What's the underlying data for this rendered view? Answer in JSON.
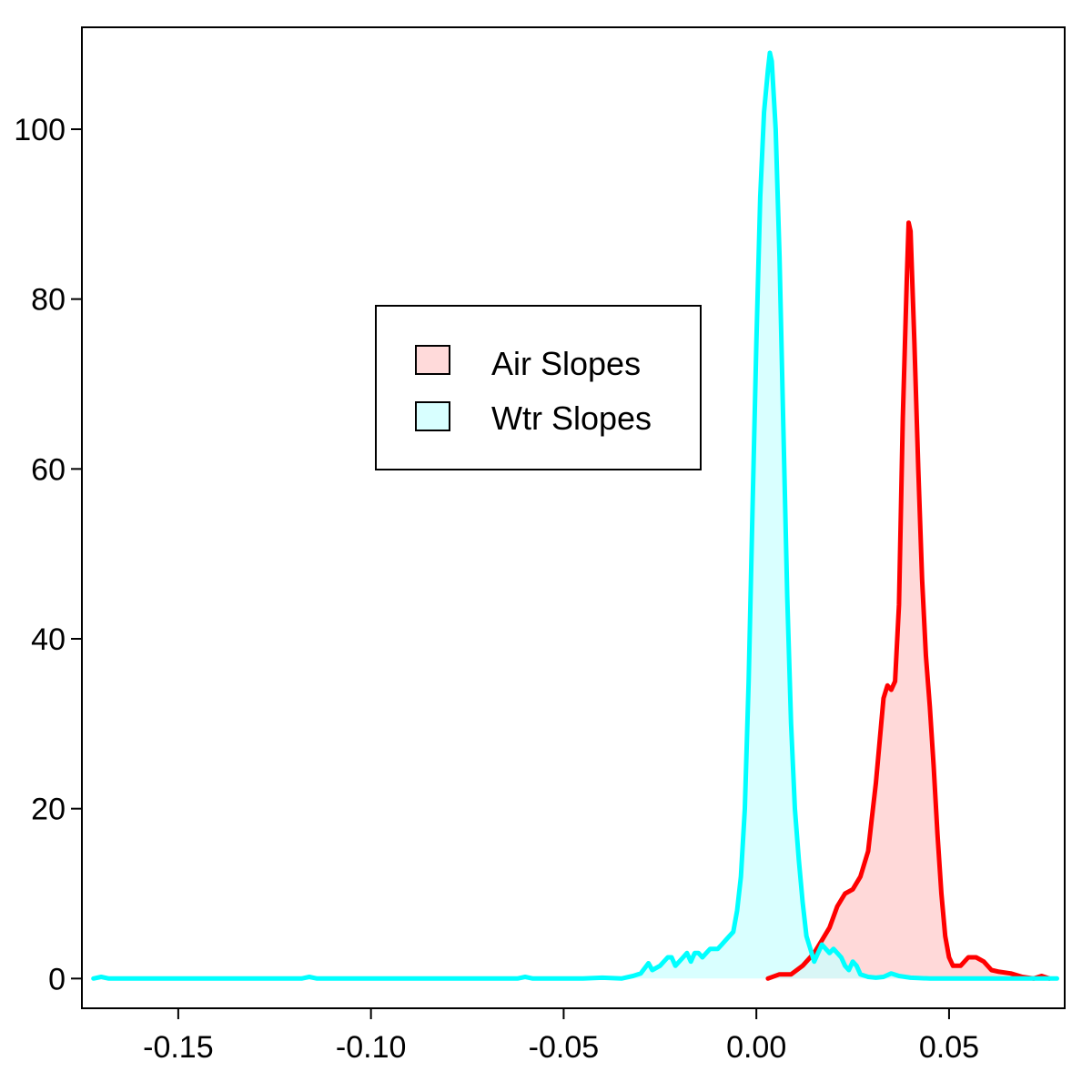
{
  "chart_data": {
    "type": "area",
    "title": "",
    "xlabel": "",
    "ylabel": "",
    "xlim": [
      -0.175,
      0.08
    ],
    "ylim": [
      -3.5,
      112
    ],
    "x_ticks": [
      -0.15,
      -0.1,
      -0.05,
      0.0,
      0.05
    ],
    "x_tick_labels": [
      "-0.15",
      "-0.10",
      "-0.05",
      "0.00",
      "0.05"
    ],
    "y_ticks": [
      0,
      20,
      40,
      60,
      80,
      100
    ],
    "y_tick_labels": [
      "0",
      "20",
      "40",
      "60",
      "80",
      "100"
    ],
    "grid": false,
    "legend": {
      "position": "center",
      "entries": [
        {
          "label": "Air Slopes",
          "fill": "#ffdada",
          "line": "#ff0000"
        },
        {
          "label": "Wtr Slopes",
          "fill": "#d8ffff",
          "line": "#00ffff"
        }
      ]
    },
    "series": [
      {
        "name": "Air Slopes",
        "line_color": "#ff0000",
        "fill_color": "#ffcccc",
        "points": [
          [
            0.003,
            0
          ],
          [
            0.006,
            0.5
          ],
          [
            0.009,
            0.5
          ],
          [
            0.012,
            1.5
          ],
          [
            0.015,
            3
          ],
          [
            0.017,
            4.5
          ],
          [
            0.019,
            6
          ],
          [
            0.021,
            8.5
          ],
          [
            0.023,
            10
          ],
          [
            0.025,
            10.5
          ],
          [
            0.027,
            12
          ],
          [
            0.029,
            15
          ],
          [
            0.03,
            19
          ],
          [
            0.031,
            23
          ],
          [
            0.032,
            28
          ],
          [
            0.033,
            33
          ],
          [
            0.034,
            34.5
          ],
          [
            0.035,
            34
          ],
          [
            0.036,
            35
          ],
          [
            0.037,
            44
          ],
          [
            0.038,
            66
          ],
          [
            0.039,
            82
          ],
          [
            0.0395,
            89
          ],
          [
            0.04,
            88
          ],
          [
            0.041,
            75
          ],
          [
            0.042,
            60
          ],
          [
            0.043,
            47
          ],
          [
            0.044,
            38
          ],
          [
            0.045,
            32
          ],
          [
            0.046,
            25
          ],
          [
            0.047,
            17
          ],
          [
            0.048,
            10
          ],
          [
            0.049,
            5
          ],
          [
            0.05,
            2.5
          ],
          [
            0.051,
            1.5
          ],
          [
            0.053,
            1.5
          ],
          [
            0.055,
            2.5
          ],
          [
            0.057,
            2.5
          ],
          [
            0.059,
            2
          ],
          [
            0.061,
            1
          ],
          [
            0.063,
            0.8
          ],
          [
            0.066,
            0.6
          ],
          [
            0.069,
            0.2
          ],
          [
            0.072,
            0
          ],
          [
            0.074,
            0.3
          ],
          [
            0.076,
            0
          ]
        ]
      },
      {
        "name": "Wtr Slopes",
        "line_color": "#00ffff",
        "fill_color": "#ccffff",
        "points": [
          [
            -0.172,
            0
          ],
          [
            -0.17,
            0.2
          ],
          [
            -0.168,
            0
          ],
          [
            -0.14,
            0
          ],
          [
            -0.118,
            0
          ],
          [
            -0.116,
            0.2
          ],
          [
            -0.114,
            0
          ],
          [
            -0.09,
            0
          ],
          [
            -0.062,
            0
          ],
          [
            -0.06,
            0.2
          ],
          [
            -0.058,
            0
          ],
          [
            -0.045,
            0
          ],
          [
            -0.04,
            0.1
          ],
          [
            -0.035,
            0
          ],
          [
            -0.032,
            0.3
          ],
          [
            -0.03,
            0.6
          ],
          [
            -0.028,
            1.8
          ],
          [
            -0.027,
            1.0
          ],
          [
            -0.025,
            1.5
          ],
          [
            -0.023,
            2.5
          ],
          [
            -0.022,
            2.5
          ],
          [
            -0.021,
            1.5
          ],
          [
            -0.019,
            2.5
          ],
          [
            -0.018,
            3.0
          ],
          [
            -0.017,
            2.0
          ],
          [
            -0.016,
            3.0
          ],
          [
            -0.015,
            3.0
          ],
          [
            -0.014,
            2.5
          ],
          [
            -0.013,
            3.0
          ],
          [
            -0.012,
            3.5
          ],
          [
            -0.01,
            3.5
          ],
          [
            -0.009,
            4.0
          ],
          [
            -0.008,
            4.5
          ],
          [
            -0.007,
            5.0
          ],
          [
            -0.006,
            5.5
          ],
          [
            -0.005,
            8
          ],
          [
            -0.004,
            12
          ],
          [
            -0.003,
            20
          ],
          [
            -0.002,
            35
          ],
          [
            -0.001,
            55
          ],
          [
            0.0,
            75
          ],
          [
            0.001,
            92
          ],
          [
            0.002,
            102
          ],
          [
            0.003,
            107
          ],
          [
            0.0035,
            109
          ],
          [
            0.004,
            108
          ],
          [
            0.005,
            100
          ],
          [
            0.006,
            85
          ],
          [
            0.007,
            65
          ],
          [
            0.008,
            45
          ],
          [
            0.009,
            30
          ],
          [
            0.01,
            20
          ],
          [
            0.011,
            14
          ],
          [
            0.012,
            9
          ],
          [
            0.013,
            5
          ],
          [
            0.014,
            3.5
          ],
          [
            0.015,
            2
          ],
          [
            0.016,
            3
          ],
          [
            0.017,
            4
          ],
          [
            0.018,
            3.5
          ],
          [
            0.019,
            3.0
          ],
          [
            0.02,
            3.5
          ],
          [
            0.021,
            3.0
          ],
          [
            0.022,
            2.5
          ],
          [
            0.023,
            1.5
          ],
          [
            0.024,
            1.0
          ],
          [
            0.025,
            2.0
          ],
          [
            0.026,
            1.5
          ],
          [
            0.027,
            0.5
          ],
          [
            0.029,
            0.2
          ],
          [
            0.031,
            0.1
          ],
          [
            0.033,
            0.2
          ],
          [
            0.035,
            0.6
          ],
          [
            0.037,
            0.3
          ],
          [
            0.04,
            0.1
          ],
          [
            0.045,
            0
          ],
          [
            0.055,
            0
          ],
          [
            0.065,
            0
          ],
          [
            0.078,
            0
          ]
        ]
      }
    ]
  }
}
